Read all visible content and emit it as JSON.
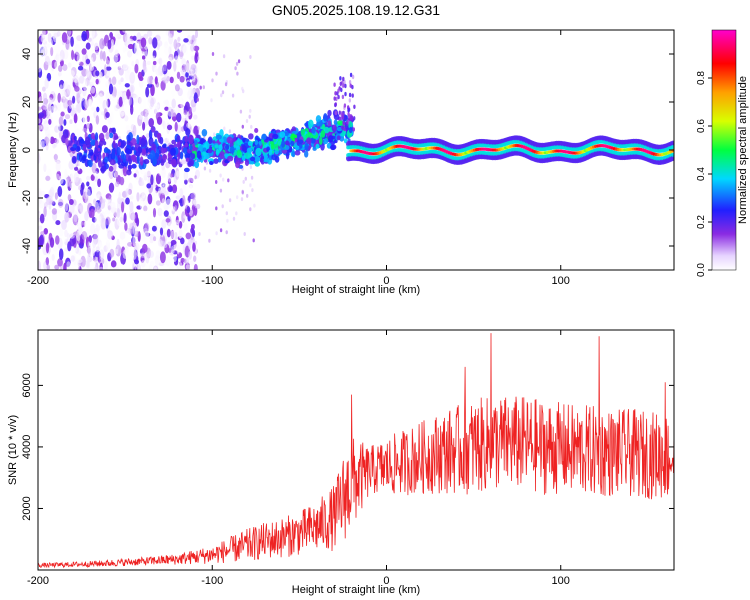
{
  "title": "GN05.2025.108.19.12.G31",
  "colors": {
    "snr_line": "#ee2222",
    "background": "#ffffff",
    "axis": "#000000"
  },
  "chart_data": [
    {
      "type": "heatmap",
      "name": "spectrogram",
      "xlabel": "Height of straight line (km)",
      "ylabel": "Frequency (Hz)",
      "xlim": [
        -200,
        165
      ],
      "ylim": [
        -50,
        50
      ],
      "xticks": [
        -200,
        -100,
        0,
        100
      ],
      "yticks": [
        -40,
        -20,
        0,
        20,
        40
      ],
      "colorbar": {
        "label": "Normalized spectral amplitude",
        "range": [
          0,
          1
        ],
        "ticks": [
          0.0,
          0.2,
          0.4,
          0.6,
          0.8
        ],
        "tick_labels": [
          "0.0",
          "0.2",
          "0.4",
          "0.6",
          "0.8"
        ],
        "colormap": "rainbow: white-lavender, violet, blue, cyan, green, yellow, orange, red, magenta"
      },
      "description_ridge": [
        {
          "x_range": [
            -200,
            -110
          ],
          "character": "scattered low-amplitude noise over full band, violet"
        },
        {
          "x_range": [
            -110,
            -20
          ],
          "freq_center": 0,
          "freq_spread": 8,
          "peak_amplitude": 0.45
        },
        {
          "x_range": [
            -75,
            -20
          ],
          "feature": "upward drift to ~+15 Hz with violet spikes to ~30 Hz near -20 km"
        },
        {
          "x_range": [
            -20,
            165
          ],
          "freq_center": 0,
          "freq_spread": 3,
          "peak_amplitude": 0.9
        }
      ]
    },
    {
      "type": "line",
      "name": "snr",
      "xlabel": "Height of straight line (km)",
      "ylabel": "SNR (10 * v/v)",
      "xlim": [
        -200,
        165
      ],
      "ylim": [
        0,
        7800
      ],
      "xticks": [
        -200,
        -100,
        0,
        100
      ],
      "yticks": [
        2000,
        4000,
        6000
      ],
      "series": [
        {
          "name": "SNR",
          "x": [
            -200,
            -180,
            -160,
            -140,
            -120,
            -100,
            -90,
            -80,
            -70,
            -60,
            -50,
            -40,
            -30,
            -25,
            -20,
            -15,
            -10,
            -5,
            0,
            10,
            20,
            30,
            40,
            50,
            60,
            70,
            80,
            90,
            100,
            110,
            120,
            130,
            140,
            150,
            160,
            165
          ],
          "values": [
            150,
            180,
            220,
            280,
            350,
            500,
            650,
            800,
            950,
            1050,
            1200,
            1400,
            1700,
            2300,
            2800,
            3000,
            3200,
            3300,
            3350,
            3500,
            3650,
            3800,
            3900,
            4000,
            4100,
            4150,
            4100,
            4000,
            3950,
            3900,
            3850,
            3800,
            3800,
            3750,
            3700,
            3650
          ],
          "noise_amplitude": [
            60,
            70,
            90,
            110,
            150,
            250,
            350,
            450,
            500,
            550,
            600,
            700,
            900,
            1200,
            1300,
            1000,
            700,
            700,
            800,
            900,
            1000,
            1100,
            1200,
            1300,
            1300,
            1300,
            1300,
            1300,
            1250,
            1250,
            1250,
            1200,
            1200,
            1200,
            1200,
            1150
          ],
          "peaks": [
            [
              -20,
              5700
            ],
            [
              60,
              7700
            ],
            [
              122,
              7600
            ],
            [
              45,
              6600
            ],
            [
              160,
              6100
            ]
          ]
        }
      ]
    }
  ]
}
